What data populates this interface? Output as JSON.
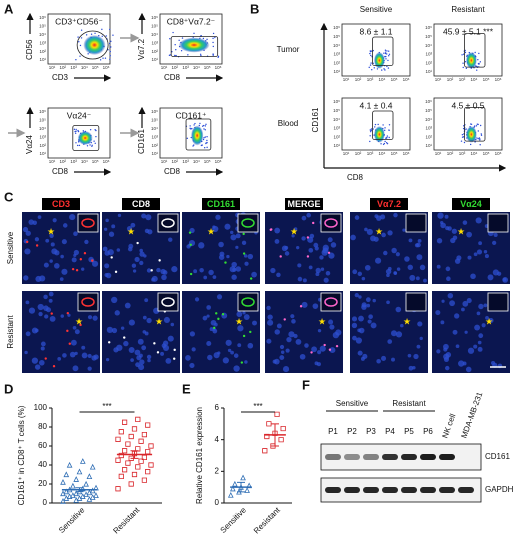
{
  "panels": {
    "A": {
      "label": "A",
      "plots": [
        {
          "gate": "CD3⁺CD56⁻",
          "x_label": "CD3",
          "y_label": "CD56"
        },
        {
          "gate": "CD8⁺Vα7.2⁻",
          "x_label": "CD8",
          "y_label": "Vα7.2"
        },
        {
          "gate": "Vα24⁻",
          "x_label": "CD8",
          "y_label": "Vα24"
        },
        {
          "gate": "CD161⁺",
          "x_label": "CD8",
          "y_label": "CD161"
        }
      ]
    },
    "flow_ticks": [
      "10¹",
      "10²",
      "10³",
      "10⁴",
      "10⁵",
      "10⁶"
    ],
    "B": {
      "label": "B",
      "columns": [
        "Sensitive",
        "Resistant"
      ],
      "rows": [
        "Tumor",
        "Blood"
      ],
      "y_label": "CD161",
      "x_label": "CD8",
      "gates": [
        [
          "8.6 ± 1.1",
          "45.9 ± 5.1 ***"
        ],
        [
          "4.1 ± 0.4",
          "4.5 ± 0.5"
        ]
      ]
    },
    "C": {
      "label": "C",
      "markers": [
        "CD3",
        "CD8",
        "CD161",
        "MERGE",
        "Vα7.2",
        "Vα24"
      ],
      "marker_colors": [
        "#ff3030",
        "#ffffff",
        "#33dd33",
        "#ffffff",
        "#ff3030",
        "#33dd33"
      ],
      "rows": [
        "Sensitive",
        "Resistant"
      ]
    },
    "D": {
      "label": "D",
      "type": "strip",
      "y_label": "CD161⁺ in CD8⁺ T cells (%)",
      "categories": [
        "Sensitive",
        "Resistant"
      ],
      "colors": [
        "#2e6db4",
        "#d9262b"
      ],
      "ylim": [
        0,
        100
      ],
      "yticks": [
        0,
        20,
        40,
        60,
        80,
        100
      ],
      "significance": "***",
      "values": [
        [
          2,
          3,
          4,
          5,
          5,
          6,
          7,
          7,
          8,
          8,
          9,
          10,
          10,
          11,
          12,
          12,
          13,
          14,
          15,
          16,
          18,
          20,
          22,
          25,
          28,
          30,
          33,
          38,
          40,
          44
        ],
        [
          15,
          20,
          24,
          28,
          30,
          33,
          35,
          38,
          40,
          42,
          44,
          45,
          47,
          48,
          50,
          52,
          54,
          55,
          57,
          60,
          62,
          65,
          67,
          70,
          72,
          75,
          78,
          82,
          85,
          88
        ]
      ],
      "means": [
        14,
        51
      ],
      "errors": [
        2,
        4
      ]
    },
    "E": {
      "label": "E",
      "type": "strip",
      "y_label": "Relative CD161 expression",
      "categories": [
        "Sensitive",
        "Resistant"
      ],
      "colors": [
        "#2e6db4",
        "#d9262b"
      ],
      "ylim": [
        0,
        6
      ],
      "yticks": [
        0,
        2,
        4,
        6
      ],
      "significance": "***",
      "values": [
        [
          0.5,
          0.7,
          0.8,
          0.9,
          1.0,
          1.1,
          1.2,
          1.6
        ],
        [
          3.3,
          3.6,
          4.0,
          4.2,
          4.4,
          4.7,
          5.0,
          5.6
        ]
      ],
      "means": [
        1.0,
        4.3
      ],
      "errors": [
        0.3,
        0.7
      ]
    },
    "F": {
      "label": "F",
      "groups": [
        "Sensitive",
        "Resistant"
      ],
      "lanes": [
        "P1",
        "P2",
        "P3",
        "P4",
        "P5",
        "P6",
        "NK cell",
        "MDA-MB-231"
      ],
      "bands": [
        "CD161",
        "GAPDH"
      ]
    }
  }
}
